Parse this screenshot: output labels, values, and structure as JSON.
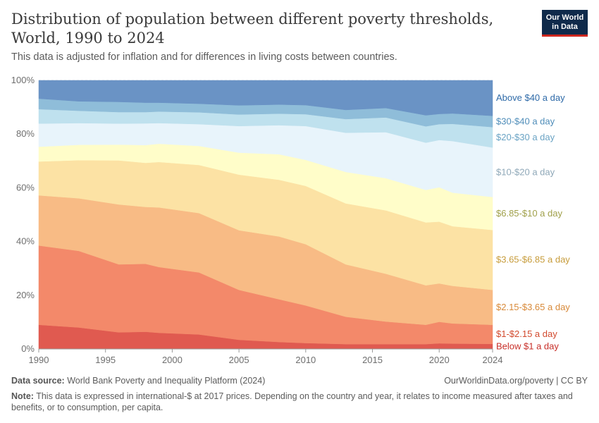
{
  "header": {
    "title": "Distribution of population between different poverty thresholds, World, 1990 to 2024",
    "subtitle": "This data is adjusted for inflation and for differences in living costs between countries.",
    "logo_line1": "Our World",
    "logo_line2": "in Data"
  },
  "footer": {
    "source_label": "Data source:",
    "source_text": "World Bank Poverty and Inequality Platform (2024)",
    "link": "OurWorldinData.org/poverty | CC BY",
    "note_label": "Note:",
    "note_text": "This data is expressed in international-$ at 2017 prices. Depending on the country and year, it relates to income measured after taxes and benefits, or to consumption, per capita."
  },
  "chart_data": {
    "type": "area",
    "stacked": true,
    "title": "Distribution of population between different poverty thresholds, World, 1990 to 2024",
    "ylabel": "",
    "xlabel": "",
    "xlim": [
      1990,
      2024
    ],
    "ylim": [
      0,
      100
    ],
    "yticks": [
      0,
      20,
      40,
      60,
      80,
      100
    ],
    "ytick_labels": [
      "0%",
      "20%",
      "40%",
      "60%",
      "80%",
      "100%"
    ],
    "xticks": [
      1990,
      1995,
      2000,
      2005,
      2010,
      2015,
      2020,
      2024
    ],
    "grid": true,
    "legend_position": "right",
    "x": [
      1990,
      1993,
      1996,
      1998,
      1999,
      2002,
      2005,
      2008,
      2010,
      2013,
      2016,
      2019,
      2020,
      2021,
      2024
    ],
    "series": [
      {
        "name": "Below $1 a day",
        "color": "#e05a50",
        "label_color": "#c8302a",
        "values": [
          9,
          8,
          6.2,
          6.4,
          6,
          5.4,
          3.4,
          2.6,
          2.2,
          1.8,
          1.8,
          1.8,
          2.1,
          2,
          1.9
        ]
      },
      {
        "name": "$1-$2.15 a day",
        "color": "#f3896a",
        "label_color": "#d24a2e",
        "values": [
          29.5,
          28.5,
          25.3,
          25.3,
          24.5,
          23.1,
          18.6,
          15.9,
          14,
          10.2,
          8.4,
          7.2,
          8,
          7.5,
          7.1
        ]
      },
      {
        "name": "$2.15-$3.65 a day",
        "color": "#f8bb85",
        "label_color": "#d88a3a",
        "values": [
          18.7,
          19.6,
          22.3,
          21.2,
          22.2,
          22.1,
          22.2,
          23.4,
          22.8,
          19.5,
          17.8,
          14.7,
          14.3,
          14,
          13
        ]
      },
      {
        "name": "$3.65-$6.85 a day",
        "color": "#fce2a4",
        "label_color": "#c79c3b",
        "values": [
          12.6,
          14.2,
          16.4,
          16.4,
          16.9,
          17.9,
          20.7,
          21.1,
          21.7,
          22.7,
          23.6,
          23.4,
          23,
          22.2,
          22.3
        ]
      },
      {
        "name": "$6.85-$10 a day",
        "color": "#fffdc9",
        "label_color": "#a0a04a",
        "values": [
          5.5,
          5.7,
          5.9,
          6.6,
          6.8,
          7.1,
          8.2,
          9.5,
          9.7,
          11.7,
          12,
          12.1,
          12.8,
          12.5,
          12.3
        ]
      },
      {
        "name": "$10-$20 a day",
        "color": "#e8f4fb",
        "label_color": "#8fa8b8",
        "values": [
          8.6,
          8.1,
          7.8,
          8.1,
          7.7,
          8.1,
          9.9,
          10.8,
          12.6,
          14.6,
          17.1,
          17.6,
          17.6,
          19.2,
          18.4
        ]
      },
      {
        "name": "$20-$30 a day",
        "color": "#bfe1ee",
        "label_color": "#6aa3c4",
        "values": [
          5.4,
          4.6,
          4.3,
          4.2,
          4.3,
          4.4,
          4.3,
          4.3,
          4.4,
          5.1,
          5.5,
          6.1,
          5.9,
          6.4,
          7.6
        ]
      },
      {
        "name": "$30-$40 a day",
        "color": "#8fbdd9",
        "label_color": "#4f8db9",
        "values": [
          3.9,
          3.5,
          3.8,
          3.5,
          3.3,
          3.2,
          3.4,
          3.4,
          3.4,
          3.4,
          3.5,
          4.1,
          3.8,
          3.9,
          4.2
        ]
      },
      {
        "name": "Above $40 a day",
        "color": "#6a93c5",
        "label_color": "#2e6aa8",
        "values": [
          6.8,
          7.8,
          8,
          8.3,
          8.3,
          8.7,
          9.3,
          9,
          9.2,
          11,
          10.3,
          13,
          12.5,
          12.3,
          13.2
        ]
      }
    ]
  }
}
